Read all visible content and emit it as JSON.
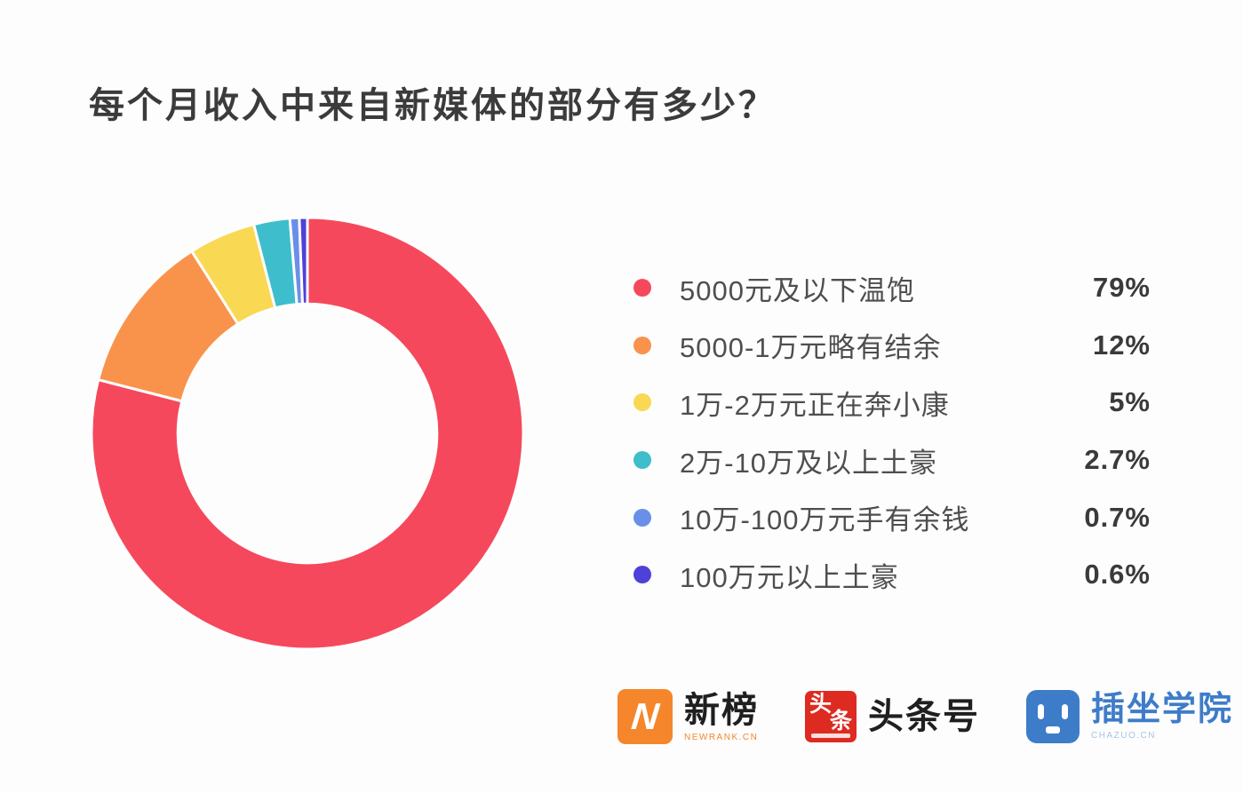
{
  "title": "每个月收入中来自新媒体的部分有多少？",
  "chart_data": {
    "type": "pie",
    "subtype": "donut",
    "start_angle_deg": 0,
    "direction": "clockwise",
    "inner_radius_ratio": 0.6,
    "legend_position": "right",
    "slices": [
      {
        "label": "5000元及以下温饱",
        "value_pct": 79,
        "display": "79%",
        "color": "#F6485C"
      },
      {
        "label": "5000-1万元略有结余",
        "value_pct": 12,
        "display": "12%",
        "color": "#F9934B"
      },
      {
        "label": "1万-2万元正在奔小康",
        "value_pct": 5,
        "display": "5%",
        "color": "#F9D853"
      },
      {
        "label": "2万-10万及以上土豪",
        "value_pct": 2.7,
        "display": "2.7%",
        "color": "#3EBECC"
      },
      {
        "label": "10万-100万元手有余钱",
        "value_pct": 0.7,
        "display": "0.7%",
        "color": "#6A8FE9"
      },
      {
        "label": "100万元以上土豪",
        "value_pct": 0.6,
        "display": "0.6%",
        "color": "#4E41D8"
      }
    ]
  },
  "footer": {
    "newrank": {
      "title": "新榜",
      "subtitle": "NEWRANK.CN",
      "icon_letter": "N",
      "brand_color": "#F5862B"
    },
    "toutiao": {
      "title": "头条号",
      "icon_char_1": "头",
      "icon_char_2": "条",
      "brand_color": "#DD2B22"
    },
    "chazuo": {
      "title": "插坐学院",
      "subtitle": "CHAZUO.CN",
      "brand_color": "#3D7CC9"
    }
  }
}
